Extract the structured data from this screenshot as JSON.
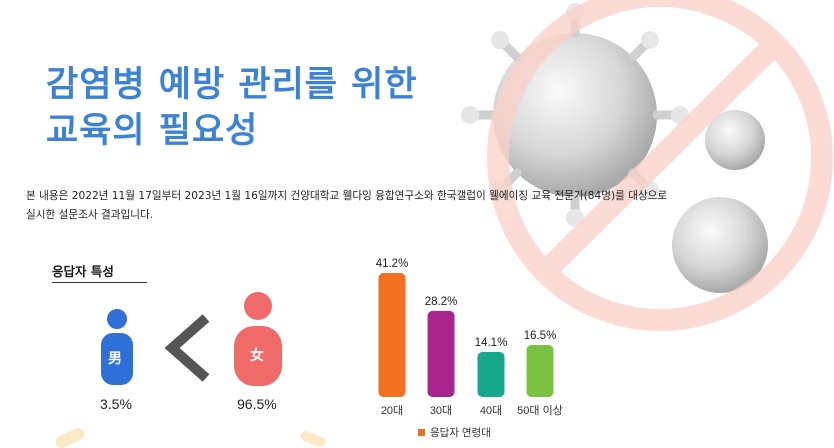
{
  "title_lines": [
    "감염병 예방 관리를 위한",
    "교육의 필요성"
  ],
  "description_lines": [
    "본 내용은 2022년 11월 17일부터 2023년 1월 16일까지 건양대학교 웰다잉 융합연구소와 한국갤럽이 웰에이징 교육 전문가(84명)를 대상으로",
    "실시한 설문조사 결과입니다."
  ],
  "respondents": {
    "section_title": "응답자 특성",
    "male": {
      "label": "男",
      "percent": "3.5%",
      "value": 3.5
    },
    "female": {
      "label": "女",
      "percent": "96.5%",
      "value": 96.5
    }
  },
  "colors": {
    "title": "#3c83d6",
    "male": "#2f6fd8",
    "female": "#f06a6a",
    "chevron": "#555555",
    "prohibit_sign": "#fbd0c6"
  },
  "chart_data": {
    "type": "bar",
    "categories": [
      "20대",
      "30대",
      "40대",
      "50대 이상"
    ],
    "values": [
      41.2,
      28.2,
      14.1,
      16.5
    ],
    "value_labels": [
      "41.2%",
      "28.2%",
      "14.1%",
      "16.5%"
    ],
    "colors": [
      "#f26f22",
      "#a8258e",
      "#16a88a",
      "#7cc242"
    ],
    "legend": "응답자 연령대",
    "legend_color": "#f26f22",
    "legend_position": "bottom",
    "ylim": [
      0,
      45
    ],
    "grid": false
  }
}
